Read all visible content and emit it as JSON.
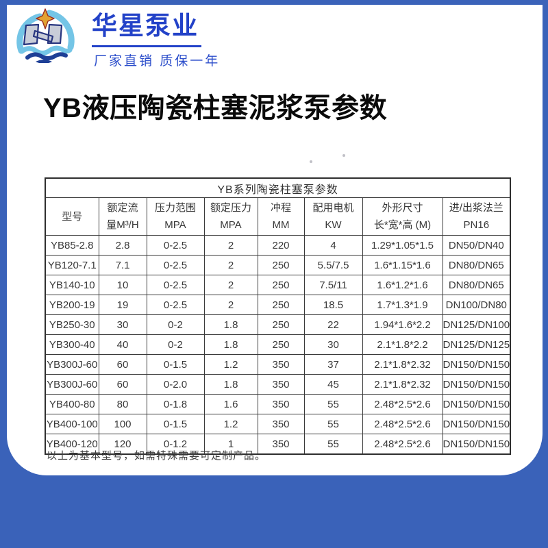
{
  "colors": {
    "background_blue": "#3a62b9",
    "card_white": "#ffffff",
    "logo_blue": "#2342c8",
    "table_border": "#3a3a3a",
    "table_text": "#383838",
    "title_black": "#0a0a0a"
  },
  "logo": {
    "company": "华星泵业",
    "tagline": "厂家直销 质保一年",
    "icon": "star-wave-pump-emblem"
  },
  "title": "YB液压陶瓷柱塞泥浆泵参数",
  "table": {
    "caption": "YB系列陶瓷柱塞泵参数",
    "columns": [
      {
        "line1": "型号",
        "line2": ""
      },
      {
        "line1": "额定流",
        "line2": "量M³/H"
      },
      {
        "line1": "压力范围",
        "line2": "MPA"
      },
      {
        "line1": "额定压力",
        "line2": "MPA"
      },
      {
        "line1": "冲程",
        "line2": "MM"
      },
      {
        "line1": "配用电机",
        "line2": "KW"
      },
      {
        "line1": "外形尺寸",
        "line2": "长*宽*高 (M)"
      },
      {
        "line1": "进/出浆法兰",
        "line2": "PN16"
      }
    ],
    "rows": [
      [
        "YB85-2.8",
        "2.8",
        "0-2.5",
        "2",
        "220",
        "4",
        "1.29*1.05*1.5",
        "DN50/DN40"
      ],
      [
        "YB120-7.1",
        "7.1",
        "0-2.5",
        "2",
        "250",
        "5.5/7.5",
        "1.6*1.15*1.6",
        "DN80/DN65"
      ],
      [
        "YB140-10",
        "10",
        "0-2.5",
        "2",
        "250",
        "7.5/11",
        "1.6*1.2*1.6",
        "DN80/DN65"
      ],
      [
        "YB200-19",
        "19",
        "0-2.5",
        "2",
        "250",
        "18.5",
        "1.7*1.3*1.9",
        "DN100/DN80"
      ],
      [
        "YB250-30",
        "30",
        "0-2",
        "1.8",
        "250",
        "22",
        "1.94*1.6*2.2",
        "DN125/DN100"
      ],
      [
        "YB300-40",
        "40",
        "0-2",
        "1.8",
        "250",
        "30",
        "2.1*1.8*2.2",
        "DN125/DN125"
      ],
      [
        "YB300J-60",
        "60",
        "0-1.5",
        "1.2",
        "350",
        "37",
        "2.1*1.8*2.32",
        "DN150/DN150"
      ],
      [
        "YB300J-60",
        "60",
        "0-2.0",
        "1.8",
        "350",
        "45",
        "2.1*1.8*2.32",
        "DN150/DN150"
      ],
      [
        "YB400-80",
        "80",
        "0-1.8",
        "1.6",
        "350",
        "55",
        "2.48*2.5*2.6",
        "DN150/DN150"
      ],
      [
        "YB400-100",
        "100",
        "0-1.5",
        "1.2",
        "350",
        "55",
        "2.48*2.5*2.6",
        "DN150/DN150"
      ],
      [
        "YB400-120",
        "120",
        "0-1.2",
        "1",
        "350",
        "55",
        "2.48*2.5*2.6",
        "DN150/DN150"
      ]
    ],
    "footnote": "以上为基本型号，如需特殊需要可定制产品。"
  }
}
